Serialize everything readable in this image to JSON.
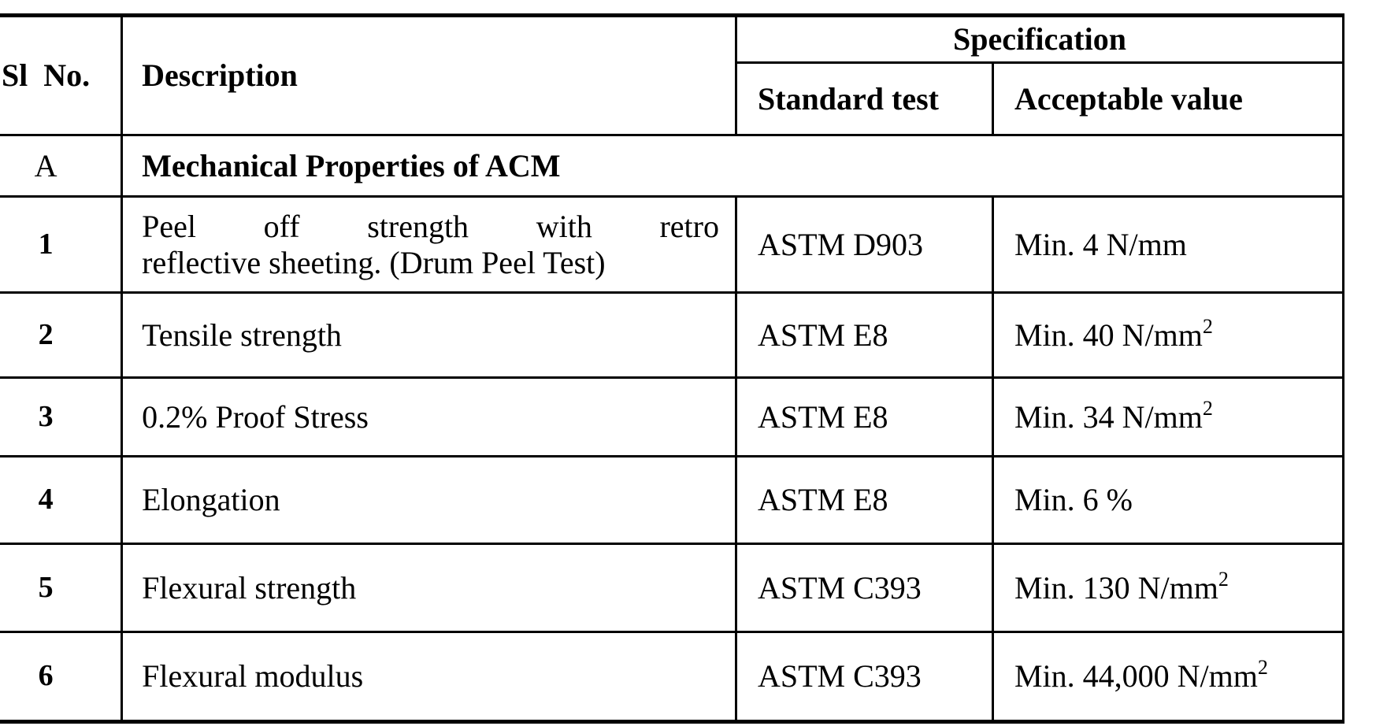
{
  "header": {
    "sl_no": "Sl No.",
    "description": "Description",
    "specification": "Specification",
    "standard_test": "Standard test",
    "acceptable_value": "Acceptable value"
  },
  "section_row": {
    "sl": "A",
    "title": "Mechanical Properties of ACM"
  },
  "rows": [
    {
      "sl": "1",
      "desc_lines": [
        "Peel off strength with retro",
        "reflective sheeting. (Drum Peel Test)"
      ],
      "standard_test": "ASTM D903",
      "acceptable_value": "Min. 4 N/mm",
      "acceptable_sup": ""
    },
    {
      "sl": "2",
      "desc": "Tensile strength",
      "standard_test": "ASTM E8",
      "acceptable_value": "Min. 40 N/mm",
      "acceptable_sup": "2"
    },
    {
      "sl": "3",
      "desc": "0.2% Proof Stress",
      "standard_test": "ASTM E8",
      "acceptable_value": "Min. 34 N/mm",
      "acceptable_sup": "2"
    },
    {
      "sl": "4",
      "desc": "Elongation",
      "standard_test": "ASTM E8",
      "acceptable_value": "Min. 6 %",
      "acceptable_sup": ""
    },
    {
      "sl": "5",
      "desc": "Flexural strength",
      "standard_test": "ASTM C393",
      "acceptable_value": "Min. 130 N/mm",
      "acceptable_sup": "2"
    },
    {
      "sl": "6",
      "desc": "Flexural modulus",
      "standard_test": "ASTM C393",
      "acceptable_value": "Min. 44,000 N/mm",
      "acceptable_sup": "2"
    }
  ],
  "colors": {
    "text": "#000000",
    "border": "#000000",
    "background": "#ffffff"
  }
}
